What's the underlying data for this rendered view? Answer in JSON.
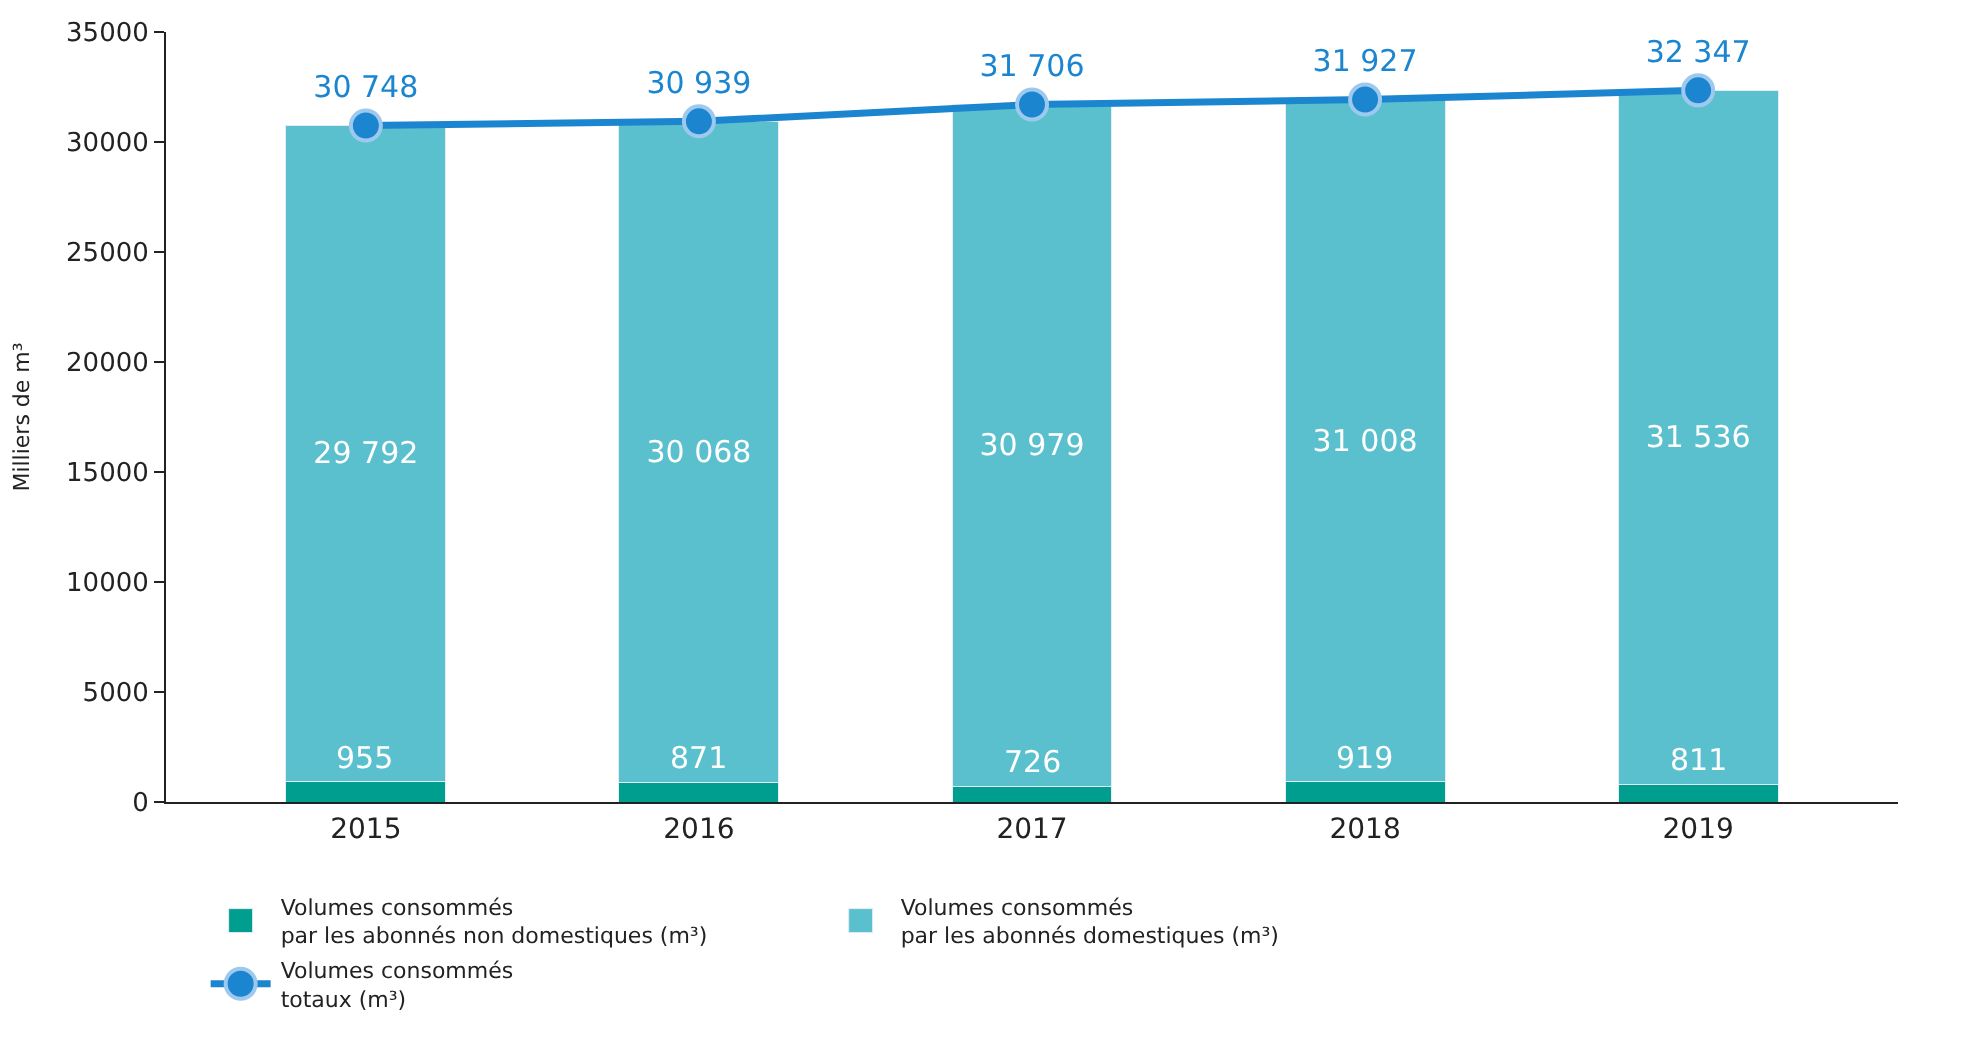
{
  "chart_data": {
    "type": "bar",
    "stacked": true,
    "ylabel": "Milliers de m³",
    "categories": [
      "2015",
      "2016",
      "2017",
      "2018",
      "2019"
    ],
    "series": [
      {
        "name": "Volumes consommés\npar les abonnés non domestiques (m³)",
        "color": "#009e8e",
        "values": [
          955,
          871,
          726,
          919,
          811
        ],
        "value_labels": [
          "955",
          "871",
          "726",
          "919",
          "811"
        ]
      },
      {
        "name": "Volumes consommés\npar les abonnés domestiques (m³)",
        "color": "#5bc0ce",
        "values": [
          29792,
          30068,
          30979,
          31008,
          31536
        ],
        "value_labels": [
          "29 792",
          "30 068",
          "30 979",
          "31 008",
          "31 536"
        ]
      },
      {
        "name": "Volumes consommés\ntotaux (m³)",
        "type": "line",
        "color": "#1b86cf",
        "marker": "circle",
        "values": [
          30748,
          30939,
          31706,
          31927,
          32347
        ],
        "value_labels": [
          "30 748",
          "30 939",
          "31 706",
          "31 927",
          "32 347"
        ]
      }
    ],
    "ylim": [
      0,
      35000
    ],
    "yticks": [
      0,
      5000,
      10000,
      15000,
      20000,
      25000,
      30000,
      35000
    ],
    "legend": "bottom"
  }
}
